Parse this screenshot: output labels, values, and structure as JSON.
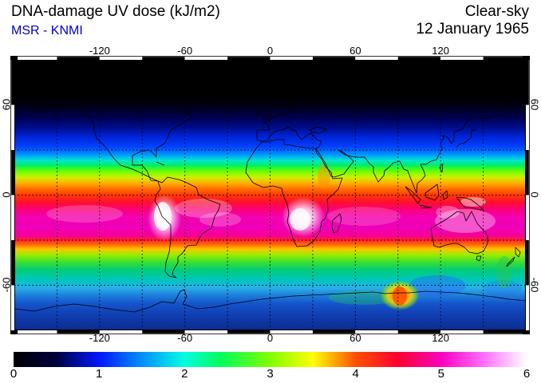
{
  "header": {
    "title": "DNA-damage UV dose (kJ/m2)",
    "subtitle": "MSR - KNMI",
    "subtitle_color": "#0000cc",
    "condition": "Clear-sky",
    "date": "12 January 1965"
  },
  "chart_data": {
    "type": "heatmap",
    "title": "DNA-damage UV dose (kJ/m2)",
    "source_label": "MSR - KNMI",
    "scene": "Clear-sky, 12 January 1965",
    "units": "kJ/m2",
    "projection": "equirectangular world map",
    "lon_range": [
      -180,
      180
    ],
    "lat_range": [
      -90,
      90
    ],
    "lon_tick_labels": [
      -120,
      -60,
      0,
      60,
      120
    ],
    "lat_tick_labels": [
      60,
      0,
      -60
    ],
    "graticule_step_deg": 30,
    "grid": "dotted graticule every 30 degrees",
    "frame": "alternating black/white zebra border every 30 degrees",
    "colorbar": {
      "min": 0,
      "max": 6,
      "tick_labels": [
        0,
        1,
        2,
        3,
        4,
        5,
        6
      ],
      "orientation": "horizontal, below map",
      "stops": [
        {
          "value": 0.0,
          "color": "#000000"
        },
        {
          "value": 0.5,
          "color": "#000040"
        },
        {
          "value": 1.0,
          "color": "#0018ff"
        },
        {
          "value": 1.5,
          "color": "#0090ff"
        },
        {
          "value": 2.0,
          "color": "#00ffe0"
        },
        {
          "value": 2.4,
          "color": "#00ff60"
        },
        {
          "value": 3.0,
          "color": "#80ff00"
        },
        {
          "value": 3.5,
          "color": "#ffff00"
        },
        {
          "value": 4.0,
          "color": "#ff5000"
        },
        {
          "value": 4.5,
          "color": "#ff0030"
        },
        {
          "value": 5.0,
          "color": "#ff00c0"
        },
        {
          "value": 5.5,
          "color": "#ff70ff"
        },
        {
          "value": 6.0,
          "color": "#ffffff"
        }
      ]
    },
    "zonal_profile": {
      "description": "approximate zonal-mean UV dose (kJ/m2) read from map colors",
      "lat": [
        90,
        70,
        62,
        55,
        45,
        35,
        30,
        25,
        20,
        15,
        10,
        5,
        0,
        -5,
        -10,
        -20,
        -28,
        -30,
        -34,
        -40,
        -50,
        -60,
        -70,
        -80,
        -90
      ],
      "value": [
        0,
        0,
        0.1,
        0.3,
        0.6,
        0.9,
        1.1,
        1.6,
        2.2,
        2.8,
        3.4,
        3.9,
        4.2,
        4.6,
        4.9,
        5.1,
        4.9,
        4.3,
        3.5,
        2.8,
        2.1,
        1.6,
        1.1,
        0.9,
        0.8
      ],
      "polar_night_black_north_of_lat": 65
    },
    "hotspots": [
      {
        "name": "Andes / Altiplano white maximum",
        "lon": -68,
        "lat": -16,
        "value": 6.0
      },
      {
        "name": "Southern Africa plateau white maximum",
        "lon": 23,
        "lat": -15,
        "value": 5.8
      },
      {
        "name": "New Guinea highlands bright patch",
        "lon": 143,
        "lat": -5,
        "value": 5.5
      },
      {
        "name": "Australia interior bright patches",
        "lon": 133,
        "lat": -22,
        "value": 5.4
      },
      {
        "name": "East Antarctic dome orange spot",
        "lon": 100,
        "lat": -68,
        "value": 3.8
      }
    ]
  }
}
